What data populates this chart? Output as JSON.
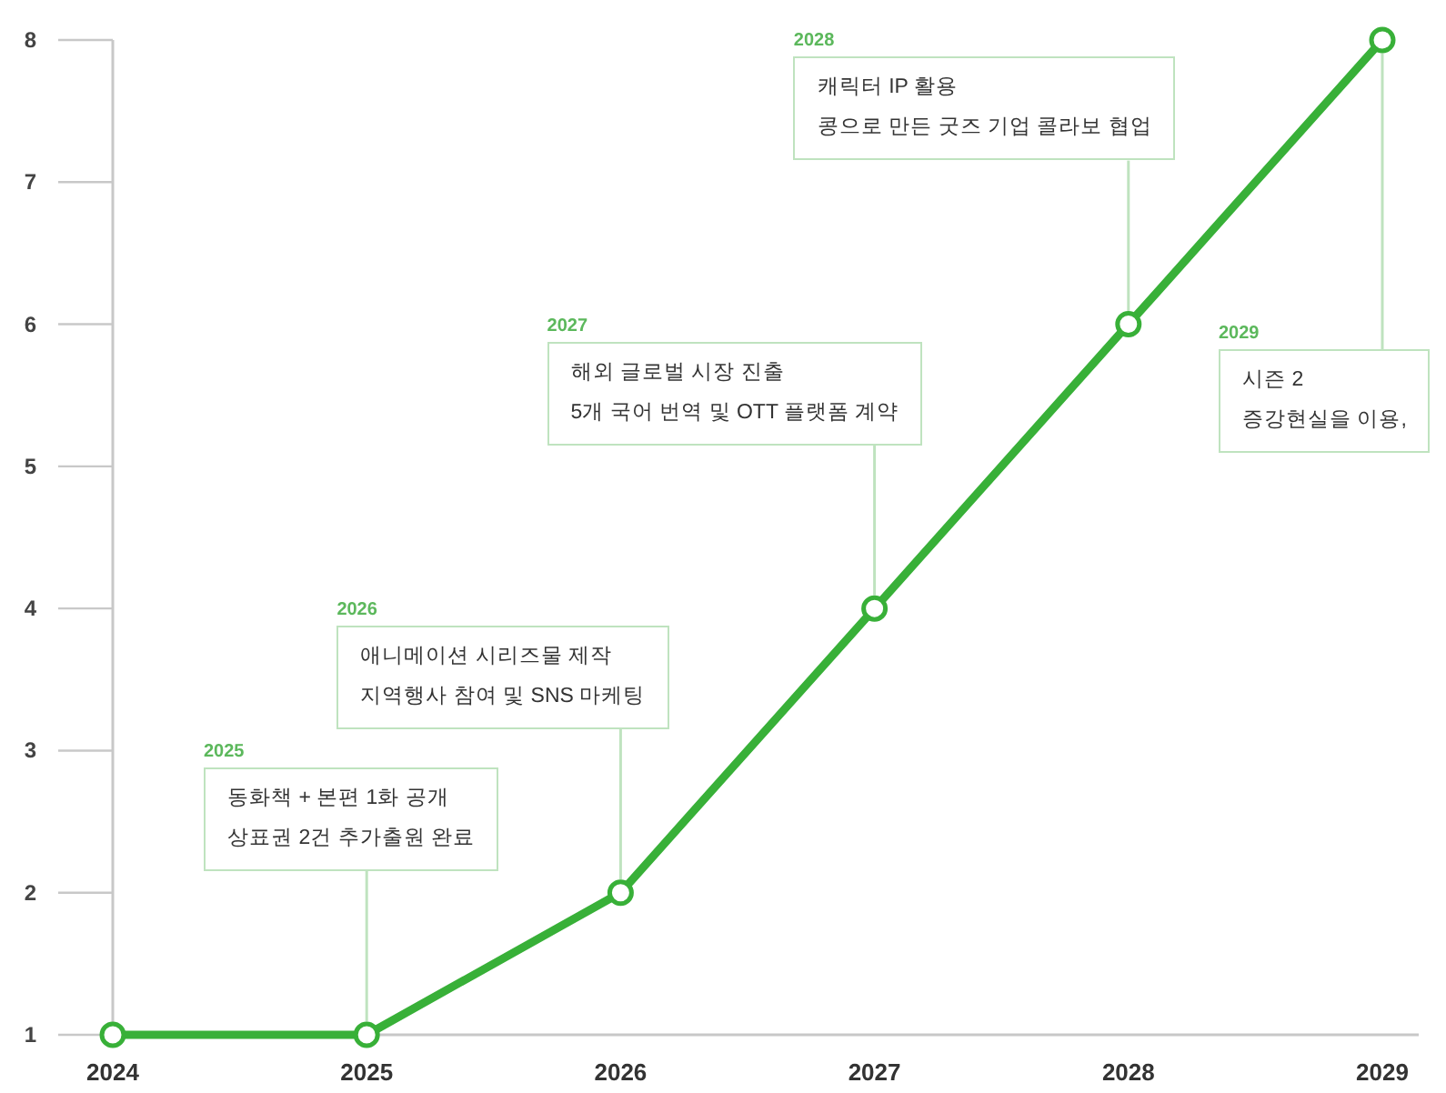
{
  "chart_data": {
    "type": "line",
    "categories": [
      "2024",
      "2025",
      "2026",
      "2027",
      "2028",
      "2029"
    ],
    "series": [
      {
        "color": "#38b038",
        "values": [
          1,
          1,
          2,
          4,
          6,
          8
        ]
      }
    ],
    "ylim": [
      1,
      8
    ],
    "yticks": [
      1,
      2,
      3,
      4,
      5,
      6,
      7,
      8
    ],
    "marker": "circle",
    "line_style": "solid",
    "annotations": [
      "2025",
      {
        "text": "동화책 + 본편 1화 공개\n상표권 2건 추가출원 완료",
        "x": "2025",
        "y": 1
      },
      "2026",
      {
        "text": "애니메이션 시리즈물 제작\n지역행사 참여 및 SNS 마케팅",
        "x": "2026",
        "y": 2
      },
      "2027",
      {
        "text": "해외 글로벌 시장 진출\n5개 국어 번역 및 OTT 플랫폼 계약",
        "x": "2027",
        "y": 4
      },
      "2028",
      {
        "text": "캐릭터 IP 활용\n콩으로 만든 굿즈 기업 콜라보 협업",
        "x": "2028",
        "y": 6
      },
      "2029",
      {
        "text": "시즌 2\n증강현실을 이용,",
        "x": "2029",
        "y": 8
      }
    ]
  }
}
